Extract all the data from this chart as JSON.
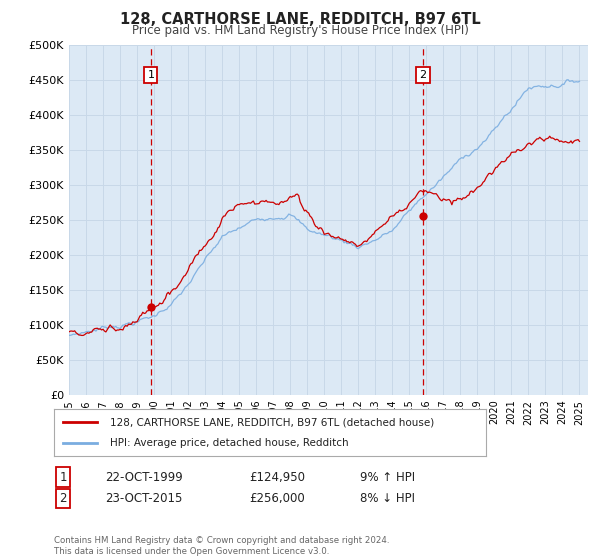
{
  "title": "128, CARTHORSE LANE, REDDITCH, B97 6TL",
  "subtitle": "Price paid vs. HM Land Registry's House Price Index (HPI)",
  "background_color": "#ffffff",
  "plot_bg_color": "#dce9f5",
  "grid_color": "#c8d8e8",
  "red_line_color": "#cc0000",
  "blue_line_color": "#7aade0",
  "ylim": [
    0,
    500000
  ],
  "yticks": [
    0,
    50000,
    100000,
    150000,
    200000,
    250000,
    300000,
    350000,
    400000,
    450000,
    500000
  ],
  "ytick_labels": [
    "£0",
    "£50K",
    "£100K",
    "£150K",
    "£200K",
    "£250K",
    "£300K",
    "£350K",
    "£400K",
    "£450K",
    "£500K"
  ],
  "sale1_date": 1999.81,
  "sale1_price": 124950,
  "sale1_label": "1",
  "sale2_date": 2015.81,
  "sale2_price": 256000,
  "sale2_label": "2",
  "vline_color": "#cc0000",
  "marker_color": "#cc0000",
  "legend_label_red": "128, CARTHORSE LANE, REDDITCH, B97 6TL (detached house)",
  "legend_label_blue": "HPI: Average price, detached house, Redditch",
  "annotation1_box": "1",
  "annotation1_date": "22-OCT-1999",
  "annotation1_price": "£124,950",
  "annotation1_hpi": "9% ↑ HPI",
  "annotation2_box": "2",
  "annotation2_date": "23-OCT-2015",
  "annotation2_price": "£256,000",
  "annotation2_hpi": "8% ↓ HPI",
  "footer": "Contains HM Land Registry data © Crown copyright and database right 2024.\nThis data is licensed under the Open Government Licence v3.0."
}
